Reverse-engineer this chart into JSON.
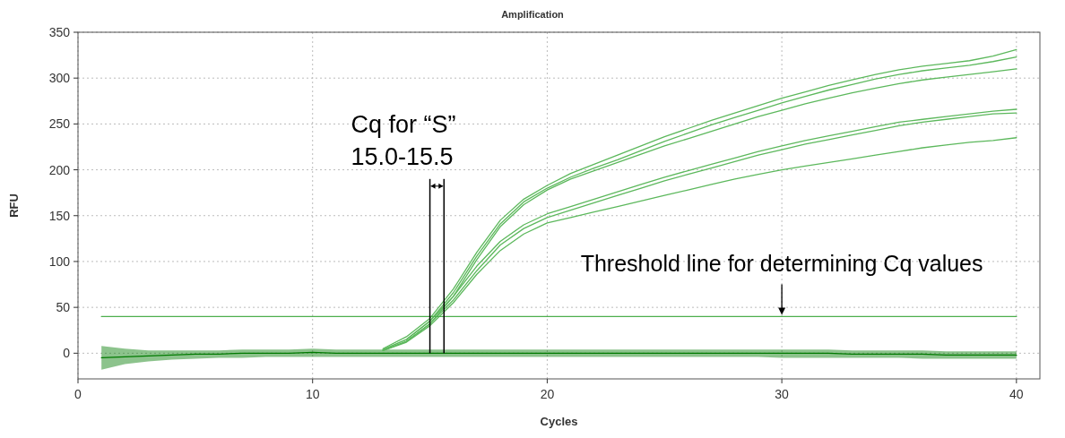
{
  "chart_data": {
    "type": "line",
    "title": "Amplification",
    "xlabel": "Cycles",
    "ylabel": "RFU",
    "xlim": [
      0,
      41
    ],
    "ylim": [
      -28,
      350
    ],
    "xticks": [
      0,
      10,
      20,
      30,
      40
    ],
    "yticks": [
      0,
      50,
      100,
      150,
      200,
      250,
      300,
      350
    ],
    "grid": true,
    "marker": "none",
    "line_style": "solid",
    "x": [
      1,
      2,
      3,
      4,
      5,
      6,
      7,
      8,
      9,
      10,
      11,
      12,
      13,
      14,
      15,
      16,
      17,
      18,
      19,
      20,
      21,
      22,
      23,
      24,
      25,
      26,
      27,
      28,
      29,
      30,
      31,
      32,
      33,
      34,
      35,
      36,
      37,
      38,
      39,
      40
    ],
    "series": [
      {
        "color": "#007a00",
        "values": [
          -5,
          -4,
          -3,
          -2,
          -1,
          -1,
          0,
          0,
          0,
          1,
          0,
          0,
          0,
          0,
          0,
          0,
          0,
          0,
          0,
          0,
          0,
          0,
          0,
          0,
          0,
          0,
          0,
          0,
          0,
          0,
          0,
          0,
          -1,
          -1,
          -1,
          -1,
          -2,
          -2,
          -2,
          -2
        ],
        "lower": [
          -18,
          -12,
          -9,
          -7,
          -6,
          -5,
          -5,
          -4,
          -4,
          -4,
          -4,
          -4,
          -4,
          -4,
          -4,
          -4,
          -4,
          -4,
          -4,
          -4,
          -4,
          -4,
          -4,
          -4,
          -4,
          -4,
          -4,
          -4,
          -4,
          -5,
          -5,
          -5,
          -5,
          -5,
          -5,
          -6,
          -6,
          -6,
          -6,
          -6
        ],
        "upper": [
          8,
          5,
          3,
          3,
          3,
          3,
          4,
          4,
          4,
          5,
          4,
          4,
          4,
          4,
          4,
          4,
          4,
          4,
          4,
          4,
          4,
          4,
          4,
          4,
          4,
          4,
          4,
          4,
          4,
          4,
          4,
          4,
          3,
          3,
          3,
          3,
          2,
          2,
          2,
          2
        ]
      },
      {
        "color": "#5cb85c",
        "values": [
          null,
          null,
          null,
          null,
          null,
          null,
          null,
          null,
          null,
          null,
          null,
          null,
          5,
          18,
          38,
          70,
          110,
          145,
          168,
          183,
          196,
          206,
          216,
          226,
          236,
          245,
          254,
          262,
          270,
          278,
          285,
          292,
          298,
          304,
          309,
          313,
          316,
          319,
          324,
          331
        ]
      },
      {
        "color": "#5cb85c",
        "values": [
          null,
          null,
          null,
          null,
          null,
          null,
          null,
          null,
          null,
          null,
          null,
          null,
          4,
          15,
          35,
          66,
          106,
          141,
          165,
          180,
          192,
          202,
          211,
          221,
          231,
          240,
          249,
          257,
          265,
          273,
          280,
          287,
          293,
          299,
          304,
          308,
          311,
          314,
          318,
          323
        ]
      },
      {
        "color": "#5cb85c",
        "values": [
          null,
          null,
          null,
          null,
          null,
          null,
          null,
          null,
          null,
          null,
          null,
          null,
          3,
          13,
          32,
          62,
          102,
          138,
          162,
          178,
          190,
          199,
          208,
          217,
          226,
          234,
          242,
          250,
          258,
          265,
          272,
          278,
          284,
          289,
          294,
          298,
          301,
          304,
          307,
          310
        ]
      },
      {
        "color": "#5cb85c",
        "values": [
          null,
          null,
          null,
          null,
          null,
          null,
          null,
          null,
          null,
          null,
          null,
          null,
          4,
          15,
          35,
          62,
          95,
          122,
          140,
          152,
          160,
          168,
          176,
          184,
          192,
          199,
          206,
          213,
          220,
          226,
          232,
          237,
          242,
          247,
          252,
          255,
          258,
          261,
          264,
          266
        ]
      },
      {
        "color": "#5cb85c",
        "values": [
          null,
          null,
          null,
          null,
          null,
          null,
          null,
          null,
          null,
          null,
          null,
          null,
          3,
          13,
          32,
          58,
          90,
          118,
          136,
          148,
          156,
          164,
          172,
          180,
          188,
          195,
          202,
          209,
          216,
          222,
          228,
          233,
          238,
          243,
          248,
          252,
          255,
          258,
          261,
          262
        ]
      },
      {
        "color": "#5cb85c",
        "values": [
          null,
          null,
          null,
          null,
          null,
          null,
          null,
          null,
          null,
          null,
          null,
          null,
          3,
          12,
          30,
          55,
          86,
          112,
          130,
          142,
          148,
          154,
          160,
          166,
          172,
          178,
          184,
          190,
          195,
          200,
          204,
          208,
          212,
          216,
          220,
          224,
          227,
          230,
          232,
          235
        ]
      },
      {
        "color": "#4cae4c",
        "x": [
          1,
          40
        ],
        "values": [
          40,
          40
        ]
      }
    ],
    "ref_lines": [
      {
        "axis": "x",
        "value": 15.0,
        "color": "#000000"
      },
      {
        "axis": "x",
        "value": 15.6,
        "color": "#000000"
      }
    ],
    "annotations": [
      "Cq for “S”",
      "15.0-15.5",
      {
        "text": "Threshold line for determining Cq values",
        "x": 30,
        "y": 40
      }
    ]
  }
}
